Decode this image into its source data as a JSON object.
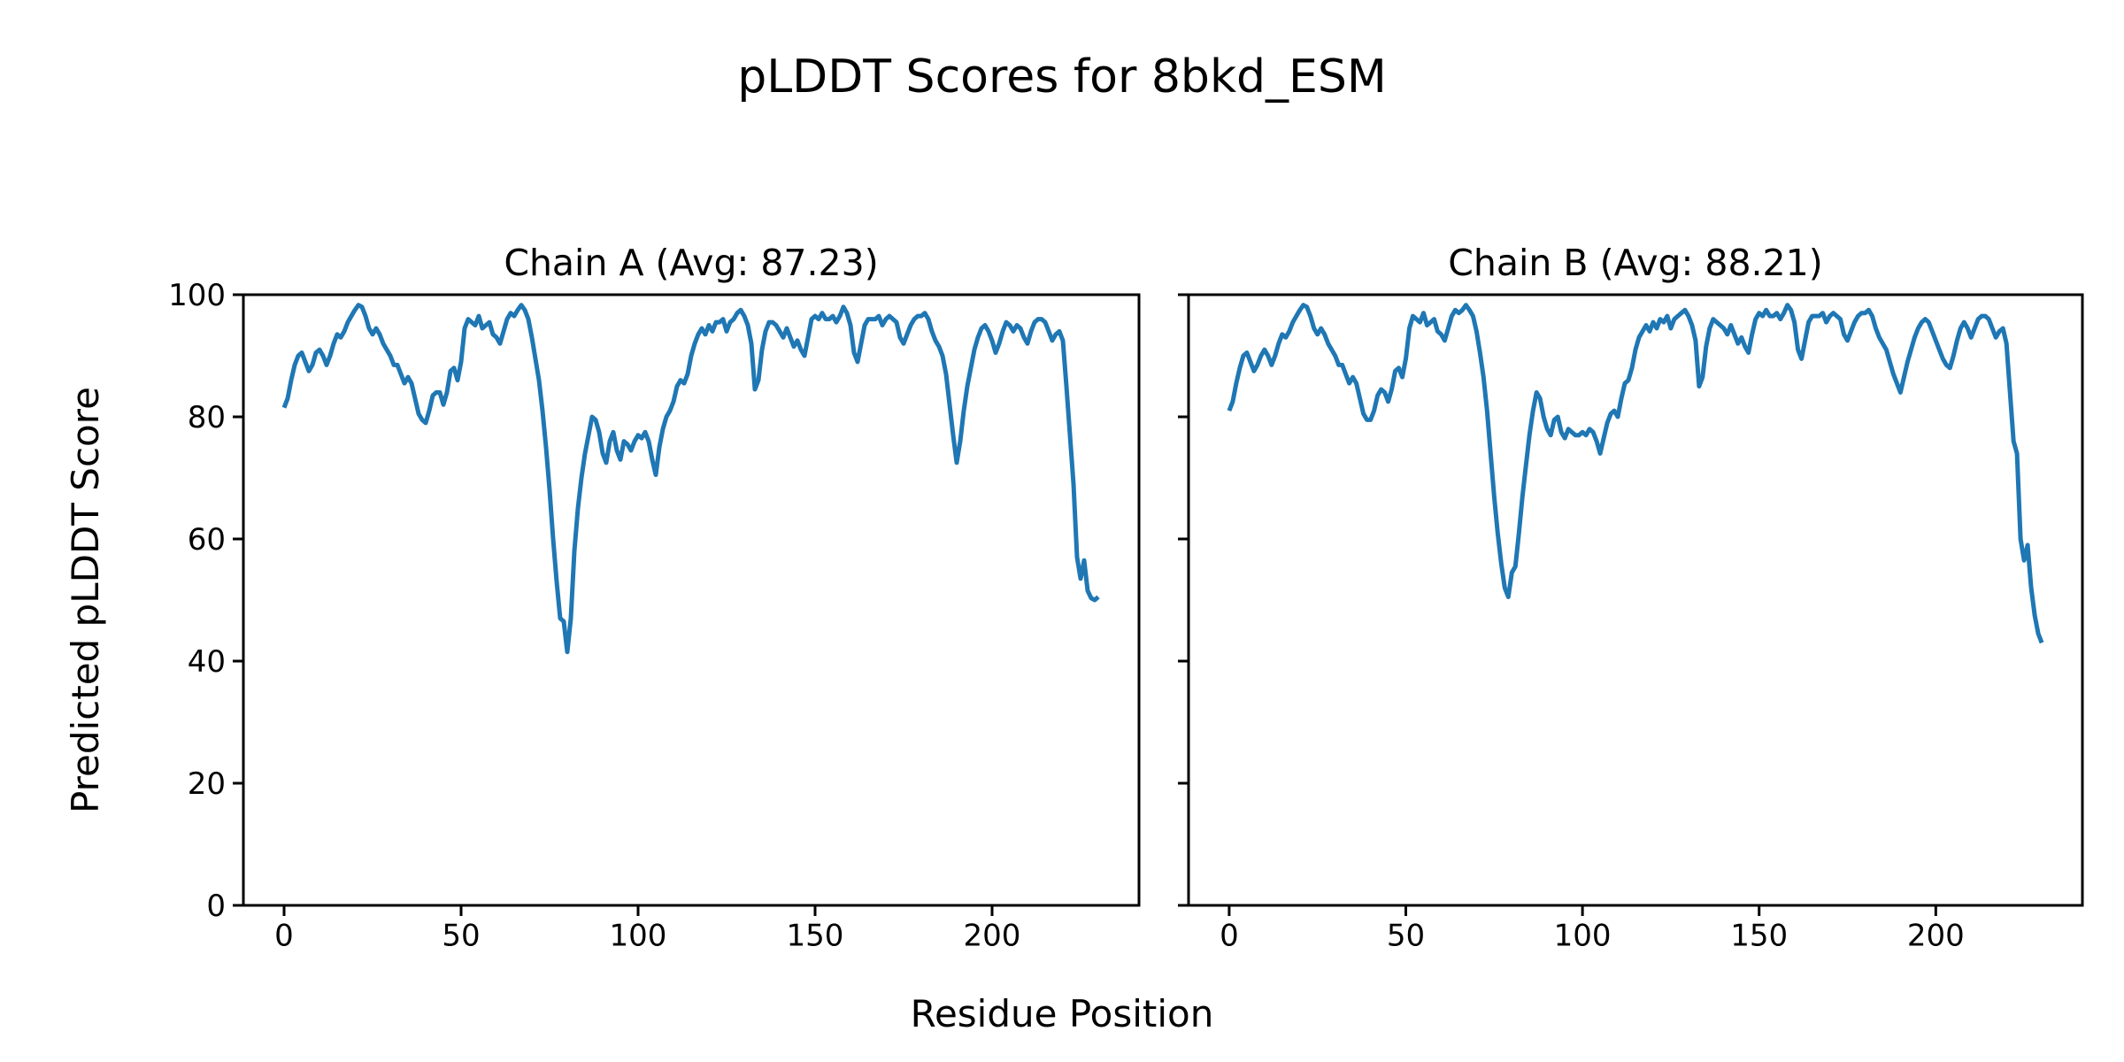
{
  "figure": {
    "title": "pLDDT Scores for 8bkd_ESM",
    "background_color": "#ffffff",
    "text_color": "#000000"
  },
  "chart_data": {
    "type": "line",
    "suptitle": "pLDDT Scores for 8bkd_ESM",
    "xlabel": "Residue Position",
    "ylabel": "Predicted pLDDT Score",
    "xlim": [
      -11.5,
      241.5
    ],
    "ylim": [
      0,
      100
    ],
    "x_ticks": [
      0,
      50,
      100,
      150,
      200
    ],
    "y_ticks": [
      0,
      20,
      40,
      60,
      80,
      100
    ],
    "grid": false,
    "legend": "none",
    "line_color": "#1f77b4",
    "axis_color": "#000000",
    "x_start": 0,
    "x_step": 1,
    "subplots": [
      {
        "name": "Chain A",
        "title": "Chain A (Avg: 87.23)",
        "avg": 87.23,
        "show_y_tick_labels": true,
        "values": [
          81.5,
          83,
          86,
          88.5,
          90,
          90.5,
          89,
          87.5,
          88.5,
          90.5,
          91,
          90,
          88.5,
          90,
          92,
          93.5,
          93,
          94,
          95.5,
          96.5,
          97.5,
          98.3,
          98,
          96.5,
          94.5,
          93.5,
          94.5,
          93.5,
          92,
          91,
          90,
          88.5,
          88.5,
          87,
          85.5,
          86.5,
          85.5,
          83,
          80.5,
          79.5,
          79,
          81,
          83.5,
          84,
          84,
          82,
          84,
          87.5,
          88,
          86,
          89,
          94.5,
          96,
          95.5,
          95,
          96.5,
          94.5,
          95,
          95.5,
          93.5,
          93,
          92,
          94,
          96,
          97,
          96.5,
          97.5,
          98.3,
          97.5,
          96,
          93,
          89.5,
          86,
          81,
          75,
          68,
          60,
          53,
          47,
          46.5,
          41.5,
          47,
          58,
          65,
          70,
          74,
          77,
          80,
          79.5,
          77.5,
          74,
          72.5,
          76,
          77.5,
          74.5,
          73,
          76,
          75.5,
          74.5,
          76,
          77,
          76.5,
          77.5,
          76,
          73,
          70.5,
          75,
          78,
          80,
          81,
          82.5,
          85,
          86,
          85.5,
          87,
          90,
          92,
          93.5,
          94.5,
          93.5,
          95,
          94,
          95.5,
          95.5,
          96,
          94,
          95.5,
          96,
          97,
          97.5,
          96.5,
          95,
          92,
          84.5,
          86,
          91,
          94,
          95.5,
          95.5,
          95,
          94,
          93,
          94.5,
          93,
          91.5,
          92.5,
          91,
          90,
          93,
          96,
          96.5,
          96,
          97,
          96,
          96,
          96.5,
          95.5,
          96.5,
          98,
          97,
          95,
          90.5,
          89,
          92,
          95,
          96,
          96,
          96,
          96.5,
          95,
          96,
          96.5,
          96,
          95.5,
          93,
          92,
          93.5,
          95,
          96,
          96.5,
          96.5,
          97,
          96,
          94,
          92.5,
          91.5,
          90,
          87,
          82,
          77,
          72.5,
          76,
          81,
          85,
          88,
          91,
          93,
          94.5,
          95,
          94,
          92.5,
          90.5,
          92,
          94,
          95.5,
          95,
          94,
          95,
          94.5,
          93,
          92,
          94,
          95.5,
          96,
          96,
          95.5,
          94,
          92.5,
          93.5,
          94,
          92.5,
          85,
          77,
          69,
          57,
          53.5,
          56.5,
          51.5,
          50.3,
          50,
          50.5
        ]
      },
      {
        "name": "Chain B",
        "title": "Chain B (Avg: 88.21)",
        "avg": 88.21,
        "show_y_tick_labels": false,
        "values": [
          81,
          82.5,
          85.5,
          88,
          90,
          90.5,
          89,
          87.5,
          88.5,
          90,
          91,
          90,
          88.5,
          90,
          92,
          93.5,
          93,
          94,
          95.5,
          96.5,
          97.5,
          98.3,
          98,
          96.5,
          94.5,
          93.5,
          94.5,
          93.5,
          92,
          91,
          90,
          88.5,
          88.5,
          87,
          85.5,
          86.5,
          85.5,
          83,
          80.5,
          79.5,
          79.5,
          81,
          83.5,
          84.5,
          84,
          82.5,
          84.5,
          87.5,
          88,
          86.5,
          89.5,
          94.5,
          96.5,
          96,
          95.5,
          97,
          95,
          95.5,
          96,
          94,
          93.5,
          92.5,
          94.5,
          96.5,
          97.5,
          97,
          97.5,
          98.3,
          97.5,
          96.5,
          94,
          90.5,
          86.5,
          81,
          74,
          67,
          61,
          56,
          52,
          50.5,
          54.5,
          55.5,
          61,
          67,
          72,
          77,
          81,
          84,
          83,
          80,
          78,
          77,
          79.5,
          80,
          77.5,
          76.5,
          78,
          77.5,
          77,
          77,
          77.5,
          77,
          78,
          77.5,
          76,
          74,
          76.5,
          79,
          80.5,
          81,
          80,
          83,
          85.5,
          86,
          88,
          91,
          93,
          94,
          95,
          94,
          95.5,
          94.5,
          96,
          95.5,
          96.5,
          94.5,
          96,
          96.5,
          97,
          97.5,
          96.5,
          95,
          92.5,
          85,
          86.5,
          91.5,
          94.5,
          96,
          95.5,
          95,
          94.5,
          93.5,
          95,
          93.5,
          92,
          93,
          91.5,
          90.5,
          93.5,
          96,
          97,
          96.5,
          97.5,
          96.5,
          96.5,
          97,
          96,
          97,
          98.3,
          97.5,
          95.5,
          91,
          89.5,
          92.5,
          95.5,
          96.5,
          96.5,
          96.5,
          97,
          95.5,
          96.5,
          97,
          96.5,
          96,
          93.5,
          92.5,
          94,
          95.5,
          96.5,
          97,
          97,
          97.5,
          96.5,
          94.5,
          93,
          92,
          91,
          89,
          87,
          85.5,
          84,
          86.5,
          89,
          91,
          93,
          94.5,
          95.5,
          96,
          95.5,
          94,
          92.5,
          91,
          89.5,
          88.5,
          88,
          90,
          92.5,
          94.5,
          95.5,
          94.5,
          93,
          94.5,
          96,
          96.5,
          96.5,
          96,
          94.5,
          93,
          94,
          94.5,
          92,
          84,
          76,
          74,
          60,
          56.5,
          59,
          52,
          47.5,
          44.5,
          43
        ]
      }
    ]
  }
}
